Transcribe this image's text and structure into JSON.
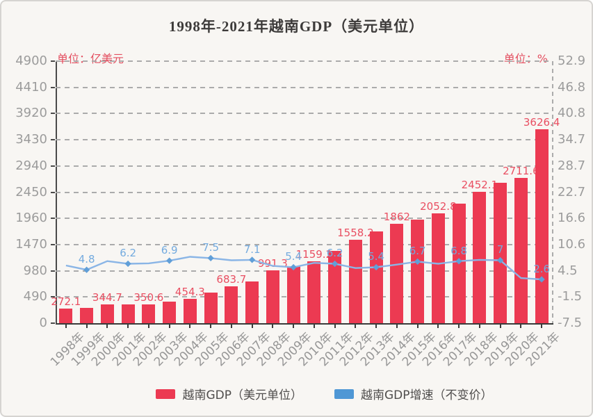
{
  "page_title": "1998年-2021年越南GDP（美元单位）",
  "chart_data": {
    "type": "bar+line",
    "title": "1998年-2021年越南GDP（美元单位）",
    "grid": true,
    "legend_position": "bottom",
    "left_axis": {
      "unit_label": "单位：亿美元",
      "ticks": [
        0,
        490,
        980,
        1470,
        1960,
        2450,
        2940,
        3430,
        3920,
        4410,
        4900
      ],
      "range": [
        0,
        4900
      ]
    },
    "right_axis": {
      "unit_label": "单位：%",
      "ticks": [
        -7.5,
        -1.5,
        4.5,
        10.6,
        16.6,
        22.7,
        28.7,
        34.7,
        40.8,
        46.8,
        52.9
      ],
      "range": [
        -7.5,
        52.9
      ]
    },
    "categories": [
      "1998年",
      "1999年",
      "2000年",
      "2001年",
      "2002年",
      "2003年",
      "2004年",
      "2005年",
      "2006年",
      "2007年",
      "2008年",
      "2009年",
      "2010年",
      "2011年",
      "2012年",
      "2013年",
      "2014年",
      "2015年",
      "2016年",
      "2017年",
      "2018年",
      "2019年",
      "2020年",
      "2021年"
    ],
    "series": [
      {
        "name": "越南GDP（美元单位）",
        "type": "bar",
        "axis": "left",
        "color": "#ec3a52",
        "label_color": "#e94f62",
        "values": [
          272.1,
          287,
          344.7,
          348,
          350.6,
          397,
          454.3,
          577,
          683.7,
          774.1,
          991.3,
          1060,
          1159.2,
          1355.4,
          1558.2,
          1712.2,
          1862,
          1932.4,
          2052.8,
          2237.8,
          2452.1,
          2619.2,
          2711.6,
          3626.4
        ],
        "labels": [
          "272.1",
          null,
          "344.7",
          null,
          "350.6",
          null,
          "454.3",
          null,
          "683.7",
          null,
          "991.3",
          null,
          "1159.2",
          null,
          "1558.2",
          null,
          "1862",
          null,
          "2052.8",
          null,
          "2452.1",
          null,
          "2711.6",
          "3626.4"
        ]
      },
      {
        "name": "越南GDP增速（不变价）",
        "type": "line",
        "axis": "right",
        "color": "#8ab5e6",
        "marker_color": "#619fd8",
        "label_color": "#74abdf",
        "values": [
          5.8,
          4.8,
          6.8,
          6.2,
          6.3,
          6.9,
          7.8,
          7.5,
          7.0,
          7.1,
          5.7,
          5.4,
          6.4,
          6.2,
          5.2,
          5.4,
          6.0,
          6.7,
          6.2,
          6.8,
          7.1,
          7.0,
          2.9,
          2.6
        ],
        "labels": [
          null,
          "4.8",
          null,
          "6.2",
          null,
          "6.9",
          null,
          "7.5",
          null,
          "7.1",
          null,
          "5.4",
          null,
          "6.2",
          null,
          "5.4",
          null,
          "6.7",
          null,
          "6.8",
          null,
          "7",
          null,
          "2.6"
        ]
      }
    ]
  }
}
